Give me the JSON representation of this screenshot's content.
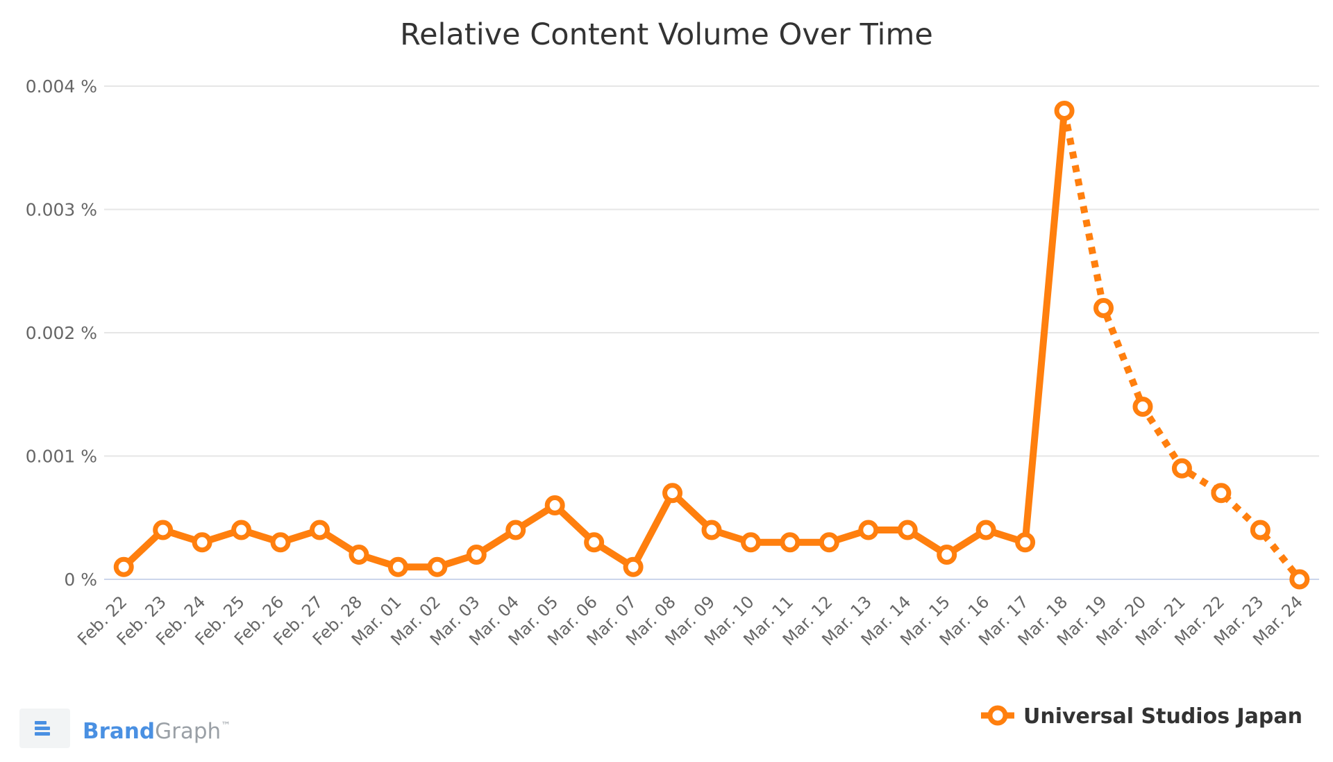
{
  "chart_data": {
    "type": "line",
    "title": "Relative Content Volume Over Time",
    "xlabel": "",
    "ylabel": "",
    "ylim": [
      0,
      0.004
    ],
    "y_ticks": [
      "0 %",
      "0.001 %",
      "0.002 %",
      "0.003 %",
      "0.004 %"
    ],
    "y_tick_values": [
      0,
      0.001,
      0.002,
      0.003,
      0.004
    ],
    "grid": true,
    "legend_position": "bottom-right",
    "categories": [
      "Feb. 22",
      "Feb. 23",
      "Feb. 24",
      "Feb. 25",
      "Feb. 26",
      "Feb. 27",
      "Feb. 28",
      "Mar. 01",
      "Mar. 02",
      "Mar. 03",
      "Mar. 04",
      "Mar. 05",
      "Mar. 06",
      "Mar. 07",
      "Mar. 08",
      "Mar. 09",
      "Mar. 10",
      "Mar. 11",
      "Mar. 12",
      "Mar. 13",
      "Mar. 14",
      "Mar. 15",
      "Mar. 16",
      "Mar. 17",
      "Mar. 18",
      "Mar. 19",
      "Mar. 20",
      "Mar. 21",
      "Mar. 22",
      "Mar. 23",
      "Mar. 24"
    ],
    "series": [
      {
        "name": "Universal Studios Japan",
        "color": "#ff7f0e",
        "values": [
          0.0001,
          0.0004,
          0.0003,
          0.0004,
          0.0003,
          0.0004,
          0.0002,
          0.0001,
          0.0001,
          0.0002,
          0.0004,
          0.0006,
          0.0003,
          0.0001,
          0.0007,
          0.0004,
          0.0003,
          0.0003,
          0.0003,
          0.0004,
          0.0004,
          0.0002,
          0.0004,
          0.0003,
          0.0038,
          0.0022,
          0.0014,
          0.0009,
          0.0007,
          0.0004,
          0.0
        ],
        "dashed_from_index": 24
      }
    ]
  },
  "brand": {
    "name_part1": "Brand",
    "name_part2": "Graph",
    "trademark": "™",
    "color1": "#4a90e2",
    "color2": "#9aa0a6",
    "logo_icon": "brandgraph-logo-icon"
  }
}
